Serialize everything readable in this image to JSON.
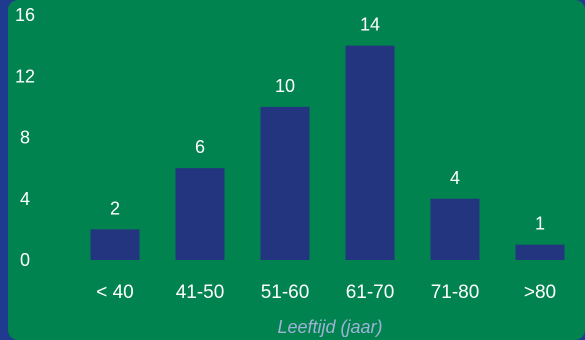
{
  "colors": {
    "background_outer": "#1f3b8f",
    "plot_panel": "#00834f",
    "bar": "#24357f",
    "text": "#ffffff",
    "axis_title": "#9fb3d8"
  },
  "chart_data": {
    "type": "bar",
    "categories": [
      "< 40",
      "41-50",
      "51-60",
      "61-70",
      "71-80",
      ">80"
    ],
    "values": [
      2,
      6,
      10,
      14,
      4,
      1
    ],
    "data_labels": [
      "2",
      "6",
      "10",
      "14",
      "4",
      "1"
    ],
    "xlabel": "Leeftijd (jaar)",
    "ylabel": "",
    "ylim": [
      0,
      16
    ],
    "yticks": [
      "0",
      "4",
      "8",
      "12",
      "16"
    ],
    "grid": false,
    "legend": "none"
  }
}
